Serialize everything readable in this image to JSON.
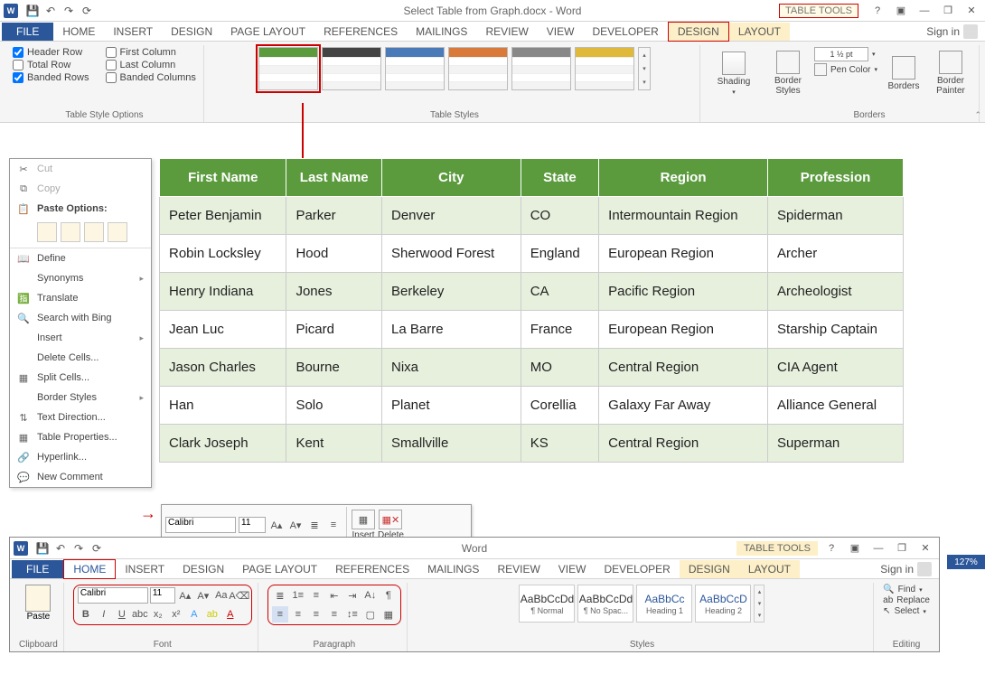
{
  "app": {
    "title": "Select Table from Graph.docx - Word",
    "word_badge": "W"
  },
  "qat": {
    "save": "💾",
    "undo": "↶",
    "redo": "↷",
    "refresh": "⟳"
  },
  "context_tab_group": "TABLE TOOLS",
  "winctrl": {
    "help": "?",
    "opts": "▣",
    "min": "—",
    "restore": "❐",
    "close": "✕"
  },
  "tabs1": {
    "file": "FILE",
    "home": "HOME",
    "insert": "INSERT",
    "design": "DESIGN",
    "page_layout": "PAGE LAYOUT",
    "references": "REFERENCES",
    "mailings": "MAILINGS",
    "review": "REVIEW",
    "view": "VIEW",
    "developer": "DEVELOPER",
    "tdesign": "DESIGN",
    "tlayout": "LAYOUT",
    "signin": "Sign in"
  },
  "style_options": {
    "header_row": "Header Row",
    "first_col": "First Column",
    "total_row": "Total Row",
    "last_col": "Last Column",
    "banded_rows": "Banded Rows",
    "banded_cols": "Banded Columns",
    "group_label": "Table Style Options"
  },
  "table_styles": {
    "group_label": "Table Styles",
    "colors": [
      "#5b9b3e",
      "#444444",
      "#4a7ab8",
      "#d97a3a",
      "#888888",
      "#e0b83a"
    ],
    "shading": "Shading"
  },
  "borders": {
    "styles": "Border\nStyles",
    "width": "1 ½ pt",
    "pen": "Pen Color",
    "borders": "Borders",
    "painter": "Border\nPainter",
    "group_label": "Borders"
  },
  "ctx_menu": {
    "cut": "Cut",
    "copy": "Copy",
    "paste_options": "Paste Options:",
    "define": "Define",
    "synonyms": "Synonyms",
    "translate": "Translate",
    "search_bing": "Search with Bing",
    "insert": "Insert",
    "delete_cells": "Delete Cells...",
    "split_cells": "Split Cells...",
    "border_styles": "Border Styles",
    "text_direction": "Text Direction...",
    "table_properties": "Table Properties...",
    "hyperlink": "Hyperlink...",
    "new_comment": "New Comment"
  },
  "table": {
    "headers": [
      "First Name",
      "Last Name",
      "City",
      "State",
      "Region",
      "Profession"
    ],
    "rows": [
      [
        "Peter Benjamin",
        "Parker",
        "Denver",
        "CO",
        "Intermountain Region",
        "Spiderman"
      ],
      [
        "Robin Locksley",
        "Hood",
        "Sherwood Forest",
        "England",
        "European Region",
        "Archer"
      ],
      [
        "Henry Indiana",
        "Jones",
        "Berkeley",
        "CA",
        "Pacific Region",
        "Archeologist"
      ],
      [
        "Jean Luc",
        "Picard",
        "La Barre",
        "France",
        "European Region",
        "Starship Captain"
      ],
      [
        "Jason Charles",
        "Bourne",
        "Nixa",
        "MO",
        "Central Region",
        "CIA Agent"
      ],
      [
        "Han",
        "Solo",
        "Planet",
        "Corellia",
        "Galaxy Far Away",
        "Alliance General"
      ],
      [
        "Clark Joseph",
        "Kent",
        "Smallville",
        "KS",
        "Central Region",
        "Superman"
      ]
    ],
    "header_bg": "#5b9b3e",
    "band_bg": "#e6f0dd"
  },
  "mini": {
    "font": "Calibri",
    "size": "11",
    "insert": "Insert",
    "delete": "Delete"
  },
  "win2": {
    "title": "Word",
    "tabs": {
      "file": "FILE",
      "home": "HOME",
      "insert": "INSERT",
      "design": "DESIGN",
      "page_layout": "PAGE LAYOUT",
      "references": "REFERENCES",
      "mailings": "MAILINGS",
      "review": "REVIEW",
      "view": "VIEW",
      "developer": "DEVELOPER",
      "tdesign": "DESIGN",
      "tlayout": "LAYOUT",
      "signin": "Sign in"
    },
    "clipboard": {
      "paste": "Paste",
      "label": "Clipboard"
    },
    "font": {
      "name": "Calibri",
      "size": "11",
      "label": "Font"
    },
    "paragraph": {
      "label": "Paragraph"
    },
    "styles": {
      "label": "Styles",
      "items": [
        {
          "prev": "AaBbCcDd",
          "name": "¶ Normal"
        },
        {
          "prev": "AaBbCcDd",
          "name": "¶ No Spac..."
        },
        {
          "prev": "AaBbCc",
          "name": "Heading 1"
        },
        {
          "prev": "AaBbCcD",
          "name": "Heading 2"
        }
      ]
    },
    "editing": {
      "find": "Find",
      "replace": "Replace",
      "select": "Select",
      "label": "Editing"
    }
  },
  "zoom": "127%"
}
